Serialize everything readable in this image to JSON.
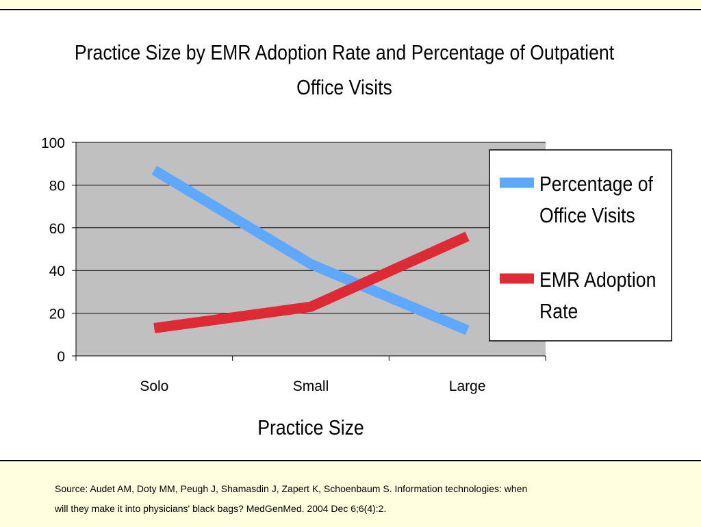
{
  "colors": {
    "background": "#ffffff",
    "bands": "#ffffe0",
    "plot_area": "#c0c0c0"
  },
  "chart_data": {
    "type": "line",
    "title_lines": [
      "Practice Size by EMR Adoption Rate and Percentage of Outpatient",
      "Office Visits"
    ],
    "categories": [
      "Solo",
      "Small",
      "Large"
    ],
    "xlabel": "Practice Size",
    "ylabel": "",
    "ylim": [
      0,
      100
    ],
    "yticks": [
      0,
      20,
      40,
      60,
      80,
      100
    ],
    "grid": true,
    "legend_position": "right",
    "series": [
      {
        "name": "Percentage of Office Visits",
        "name_lines": [
          "Percentage of",
          "Office Visits"
        ],
        "color": "#5fa8ff",
        "values": [
          87,
          43,
          12
        ]
      },
      {
        "name": "EMR Adoption Rate",
        "name_lines": [
          "EMR Adoption",
          "Rate"
        ],
        "color": "#dd2a35",
        "values": [
          13,
          23,
          56
        ]
      }
    ]
  },
  "source": {
    "line1": "Source: Audet AM, Doty MM, Peugh J, Shamasdin J, Zapert K, Schoenbaum S. Information technologies: when",
    "line2": "will they make it into physicians' black bags? MedGenMed. 2004 Dec 6;6(4):2."
  }
}
